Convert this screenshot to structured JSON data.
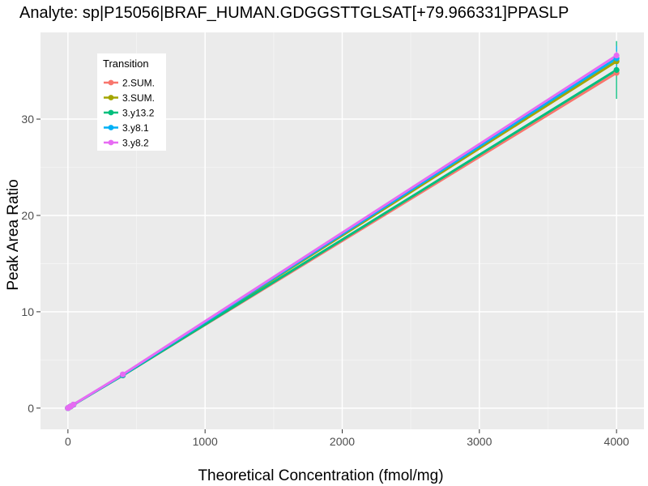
{
  "chart_data": {
    "type": "line",
    "title": "Analyte: sp|P15056|BRAF_HUMAN.GDGGSTTGLSAT[+79.966331]PPASLP",
    "xlabel": "Theoretical Concentration (fmol/mg)",
    "ylabel": "Peak Area Ratio",
    "xlim": [
      -200,
      4200
    ],
    "ylim": [
      -2.2,
      39.0
    ],
    "x_ticks": [
      0,
      1000,
      2000,
      3000,
      4000
    ],
    "x_tick_labels": [
      "0",
      "1000",
      "2000",
      "3000",
      "4000"
    ],
    "y_ticks": [
      0,
      10,
      20,
      30
    ],
    "y_tick_labels": [
      "0",
      "10",
      "20",
      "30"
    ],
    "grid": true,
    "legend": {
      "title": "Transition",
      "position": "top-left inside"
    },
    "series": [
      {
        "name": "2.SUM.",
        "color": "#F8766D",
        "x": [
          0,
          4,
          10,
          20,
          40,
          400,
          4000
        ],
        "y": [
          0.0,
          0.03,
          0.09,
          0.17,
          0.35,
          3.4,
          34.8
        ],
        "err": [
          0,
          0,
          0,
          0,
          0,
          0,
          0.3
        ]
      },
      {
        "name": "3.SUM.",
        "color": "#A3A500",
        "x": [
          0,
          4,
          10,
          20,
          40,
          400,
          4000
        ],
        "y": [
          0.0,
          0.04,
          0.09,
          0.18,
          0.36,
          3.45,
          36.0
        ],
        "err": [
          0,
          0,
          0,
          0,
          0,
          0,
          0.5
        ]
      },
      {
        "name": "3.y13.2",
        "color": "#00BF7D",
        "x": [
          0,
          4,
          10,
          20,
          40,
          400,
          4000
        ],
        "y": [
          0.0,
          0.03,
          0.09,
          0.17,
          0.35,
          3.4,
          35.1
        ],
        "err": [
          0,
          0,
          0,
          0,
          0,
          0,
          3.0
        ]
      },
      {
        "name": "3.y8.1",
        "color": "#00B0F6",
        "x": [
          0,
          4,
          10,
          20,
          40,
          400,
          4000
        ],
        "y": [
          0.0,
          0.04,
          0.09,
          0.18,
          0.36,
          3.45,
          36.3
        ],
        "err": [
          0,
          0,
          0,
          0,
          0,
          0,
          1.3
        ]
      },
      {
        "name": "3.y8.2",
        "color": "#E76BF3",
        "x": [
          0,
          4,
          10,
          20,
          40,
          400,
          4000
        ],
        "y": [
          0.0,
          0.04,
          0.09,
          0.18,
          0.37,
          3.5,
          36.6
        ],
        "err": [
          0,
          0,
          0,
          0,
          0,
          0,
          0.4
        ]
      }
    ]
  }
}
